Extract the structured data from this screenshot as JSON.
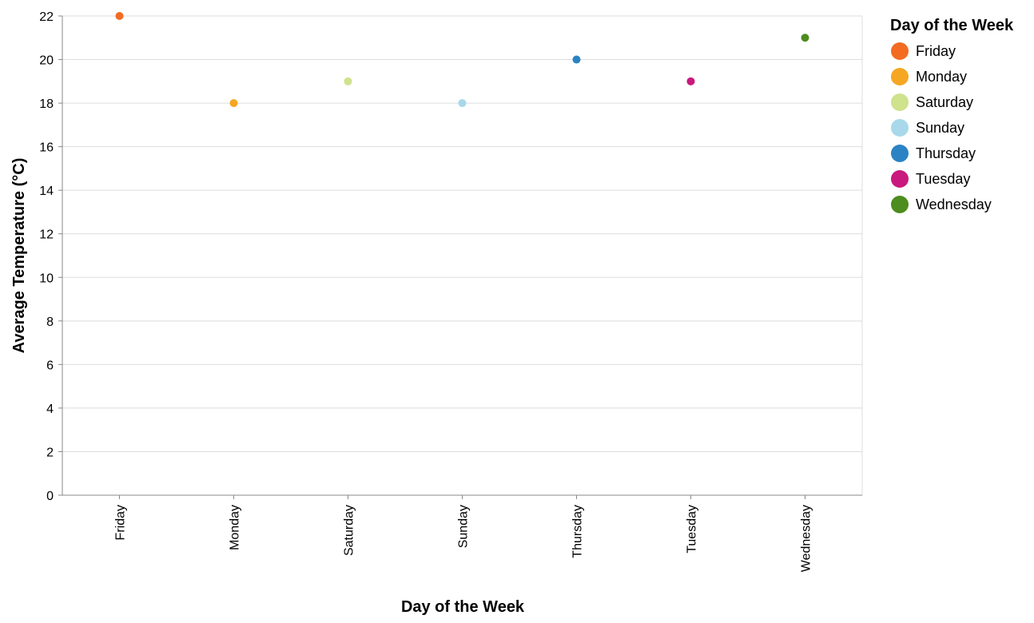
{
  "chart_data": {
    "type": "scatter",
    "categories": [
      "Friday",
      "Monday",
      "Saturday",
      "Sunday",
      "Thursday",
      "Tuesday",
      "Wednesday"
    ],
    "values": [
      22,
      18,
      19,
      18,
      20,
      19,
      21
    ],
    "colors": [
      "#f26b21",
      "#f5a623",
      "#cfe28c",
      "#a8d8ea",
      "#2b83c4",
      "#c9197e",
      "#4d8c1e"
    ],
    "xlabel": "Day of the Week",
    "ylabel": "Average Temperature (°C)",
    "ylim": [
      0,
      22
    ],
    "yticks": [
      0,
      2,
      4,
      6,
      8,
      10,
      12,
      14,
      16,
      18,
      20,
      22
    ],
    "grid": true,
    "legend": {
      "title": "Day of the Week",
      "position": "top-right",
      "entries": [
        "Friday",
        "Monday",
        "Saturday",
        "Sunday",
        "Thursday",
        "Tuesday",
        "Wednesday"
      ]
    }
  }
}
